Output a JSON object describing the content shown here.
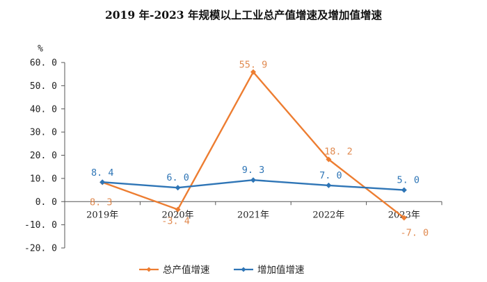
{
  "chart_data": {
    "type": "line",
    "title": "2019 年-2023 年规模以上工业总产值增速及增加值增速",
    "ylabel": "%",
    "xlabel": "",
    "ylim": [
      -20,
      60
    ],
    "yticks": [
      60,
      50,
      40,
      30,
      20,
      10,
      0,
      -10,
      -20
    ],
    "ytick_labels": [
      "60. 0",
      "50. 0",
      "40. 0",
      "30. 0",
      "20. 0",
      "10. 0",
      "0. 0",
      "-10. 0",
      "-20. 0"
    ],
    "categories": [
      "2019年",
      "2020年",
      "2021年",
      "2022年",
      "2023年"
    ],
    "legend_position": "bottom",
    "grid": false,
    "series": [
      {
        "name": "总产值增速",
        "color": "#ED7D31",
        "values": [
          8.3,
          -3.4,
          55.9,
          18.2,
          -7.0
        ],
        "labels": [
          "8. 3",
          "-3. 4",
          "55. 9",
          "18. 2",
          "-7. 0"
        ]
      },
      {
        "name": "增加值增速",
        "color": "#2E75B6",
        "values": [
          8.4,
          6.0,
          9.3,
          7.0,
          5.0
        ],
        "labels": [
          "8. 4",
          "6. 0",
          "9. 3",
          "7. 0",
          "5. 0"
        ]
      }
    ]
  }
}
